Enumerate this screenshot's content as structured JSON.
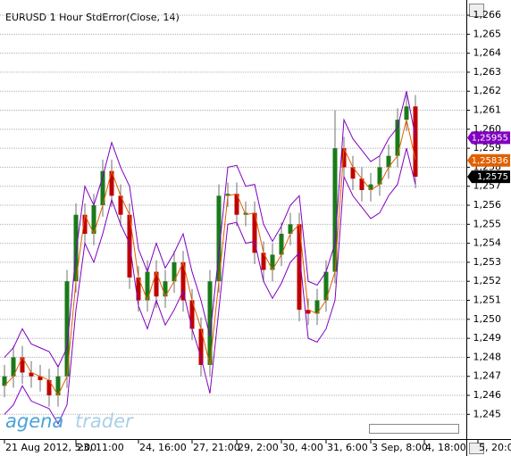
{
  "chart_data": {
    "type": "candlestick",
    "title": "EURUSD 1 Hour   StdError(Close, 14)",
    "logo": [
      "agena",
      "trader"
    ],
    "categories": [
      "21 Aug 2012, 5:00",
      null,
      null,
      null,
      null,
      null,
      null,
      null,
      "23, 11:00",
      null,
      null,
      null,
      null,
      null,
      null,
      "24, 16:00",
      null,
      null,
      null,
      null,
      null,
      "27, 21:00",
      null,
      null,
      null,
      null,
      "29, 2:00",
      null,
      null,
      null,
      null,
      "30, 4:00",
      null,
      null,
      null,
      null,
      "31, 6:00",
      null,
      null,
      null,
      null,
      "3 Sep, 8:00",
      null,
      null,
      null,
      null,
      null,
      "4, 18:00",
      null,
      null,
      null,
      null,
      null,
      "5, 20:00"
    ],
    "open": [
      1.2465,
      1.247,
      1.248,
      1.2472,
      1.247,
      1.2468,
      1.246,
      1.247,
      1.252,
      1.2555,
      1.2545,
      1.256,
      1.2578,
      1.2565,
      1.2555,
      1.2522,
      1.251,
      1.2525,
      1.2512,
      1.252,
      1.253,
      1.251,
      1.2495,
      1.2476,
      1.252,
      1.2565,
      1.2566,
      1.2555,
      1.2556,
      1.2535,
      1.2526,
      1.2534,
      1.2545,
      1.255,
      1.2505,
      1.2503,
      1.251,
      1.2525,
      1.259,
      1.258,
      1.2574,
      1.2568,
      1.2571,
      1.258,
      1.2586,
      1.2605,
      1.2612,
      null,
      null,
      null,
      null,
      null,
      null,
      null
    ],
    "high": [
      1.2476,
      1.2486,
      1.2486,
      1.2478,
      1.2476,
      1.2474,
      1.2476,
      1.2526,
      1.2561,
      1.2561,
      1.2566,
      1.2584,
      1.2584,
      1.2571,
      1.2561,
      1.2528,
      1.2531,
      1.2531,
      1.2526,
      1.2536,
      1.2536,
      1.2516,
      1.2501,
      1.2526,
      1.2571,
      1.2572,
      1.2572,
      1.2562,
      1.2562,
      1.2541,
      1.254,
      1.2551,
      1.2556,
      1.2556,
      1.2511,
      1.2516,
      1.2531,
      1.261,
      1.2596,
      1.2586,
      1.258,
      1.2577,
      1.2586,
      1.2592,
      1.2611,
      1.2618,
      1.2618,
      null,
      null,
      null,
      null,
      null,
      null,
      null
    ],
    "low": [
      1.2459,
      1.2464,
      1.2466,
      1.2464,
      1.2462,
      1.2454,
      1.2454,
      1.2464,
      1.2514,
      1.2539,
      1.2539,
      1.2554,
      1.2559,
      1.2549,
      1.2516,
      1.2504,
      1.2504,
      1.2506,
      1.2506,
      1.2514,
      1.2504,
      1.2489,
      1.247,
      1.247,
      1.2514,
      1.2559,
      1.2549,
      1.2549,
      1.2529,
      1.252,
      1.252,
      1.2528,
      1.2539,
      1.2499,
      1.2497,
      1.2497,
      1.2504,
      1.2519,
      1.2574,
      1.2568,
      1.2562,
      1.2562,
      1.2565,
      1.2574,
      1.258,
      1.2599,
      1.2569,
      null,
      null,
      null,
      null,
      null,
      null,
      null
    ],
    "close": [
      1.247,
      1.248,
      1.2472,
      1.247,
      1.2468,
      1.246,
      1.247,
      1.252,
      1.2555,
      1.2545,
      1.256,
      1.2578,
      1.2565,
      1.2555,
      1.2522,
      1.251,
      1.2525,
      1.2512,
      1.252,
      1.253,
      1.251,
      1.2495,
      1.2476,
      1.252,
      1.2565,
      1.2566,
      1.2555,
      1.2556,
      1.2535,
      1.2526,
      1.2534,
      1.2545,
      1.255,
      1.2505,
      1.2503,
      1.251,
      1.2525,
      1.259,
      1.258,
      1.2574,
      1.2568,
      1.2571,
      1.258,
      1.2586,
      1.2605,
      1.2612,
      1.2575,
      null,
      null,
      null,
      null,
      null,
      null,
      null
    ],
    "up_color": "#1a7a1a",
    "down_color": "#c00000",
    "wick_color": "#707070",
    "series": [
      {
        "color": "#8000c0",
        "values": [
          1.248,
          1.2485,
          1.2495,
          1.2487,
          1.2485,
          1.2483,
          1.2475,
          1.2485,
          1.2535,
          1.257,
          1.256,
          1.2575,
          1.2593,
          1.258,
          1.257,
          1.2537,
          1.2525,
          1.254,
          1.2527,
          1.2535,
          1.2545,
          1.2525,
          1.251,
          1.2491,
          1.2535,
          1.258,
          1.2581,
          1.257,
          1.2571,
          1.255,
          1.2541,
          1.2549,
          1.256,
          1.2565,
          1.252,
          1.2518,
          1.2525,
          1.254,
          1.2605,
          1.2595,
          1.2589,
          1.2583,
          1.2586,
          1.2595,
          1.2601,
          1.262,
          1.2596,
          null,
          null,
          null,
          null,
          null,
          null,
          null
        ]
      },
      {
        "color": "#e06000",
        "values": [
          1.2465,
          1.247,
          1.248,
          1.2472,
          1.247,
          1.2468,
          1.246,
          1.247,
          1.252,
          1.2555,
          1.2545,
          1.256,
          1.2578,
          1.2565,
          1.2555,
          1.2522,
          1.251,
          1.2525,
          1.2512,
          1.252,
          1.253,
          1.251,
          1.2495,
          1.2476,
          1.252,
          1.2565,
          1.2566,
          1.2555,
          1.2556,
          1.2535,
          1.2526,
          1.2534,
          1.2545,
          1.255,
          1.2505,
          1.2503,
          1.251,
          1.2525,
          1.259,
          1.258,
          1.2574,
          1.2568,
          1.2571,
          1.258,
          1.2586,
          1.2605,
          1.2584,
          null,
          null,
          null,
          null,
          null,
          null,
          null
        ]
      },
      {
        "color": "#8000c0",
        "values": [
          1.245,
          1.2455,
          1.2465,
          1.2457,
          1.2455,
          1.2453,
          1.2445,
          1.2455,
          1.2505,
          1.254,
          1.253,
          1.2545,
          1.2563,
          1.255,
          1.254,
          1.2507,
          1.2495,
          1.251,
          1.2497,
          1.2505,
          1.2515,
          1.2495,
          1.248,
          1.2461,
          1.2505,
          1.255,
          1.2551,
          1.254,
          1.2541,
          1.252,
          1.2511,
          1.2519,
          1.253,
          1.2535,
          1.249,
          1.2488,
          1.2495,
          1.251,
          1.2575,
          1.2565,
          1.2559,
          1.2553,
          1.2556,
          1.2565,
          1.2571,
          1.259,
          1.2571,
          null,
          null,
          null,
          null,
          null,
          null,
          null
        ]
      }
    ],
    "price_markers": [
      {
        "value": 1.25955,
        "label": "1,25955",
        "color": "#8000c0"
      },
      {
        "value": 1.25836,
        "label": "1,25836",
        "color": "#e06000"
      },
      {
        "value": 1.2575,
        "label": "1,2575",
        "color": "#000000"
      }
    ],
    "ylim": [
      1.2437,
      1.2668
    ],
    "yticks": [
      {
        "value": 1.245,
        "label": "1,245"
      },
      {
        "value": 1.246,
        "label": "1,246"
      },
      {
        "value": 1.247,
        "label": "1,247"
      },
      {
        "value": 1.248,
        "label": "1,248"
      },
      {
        "value": 1.249,
        "label": "1,249"
      },
      {
        "value": 1.25,
        "label": "1,250"
      },
      {
        "value": 1.251,
        "label": "1,251"
      },
      {
        "value": 1.252,
        "label": "1,252"
      },
      {
        "value": 1.253,
        "label": "1,253"
      },
      {
        "value": 1.254,
        "label": "1,254"
      },
      {
        "value": 1.255,
        "label": "1,255"
      },
      {
        "value": 1.256,
        "label": "1,256"
      },
      {
        "value": 1.257,
        "label": "1,257"
      },
      {
        "value": 1.258,
        "label": "1,258"
      },
      {
        "value": 1.259,
        "label": "1,259"
      },
      {
        "value": 1.26,
        "label": "1,260"
      },
      {
        "value": 1.261,
        "label": "1,261"
      },
      {
        "value": 1.262,
        "label": "1,262"
      },
      {
        "value": 1.263,
        "label": "1,263"
      },
      {
        "value": 1.264,
        "label": "1,264"
      },
      {
        "value": 1.265,
        "label": "1,265"
      },
      {
        "value": 1.266,
        "label": "1,266"
      }
    ],
    "grid": true
  }
}
